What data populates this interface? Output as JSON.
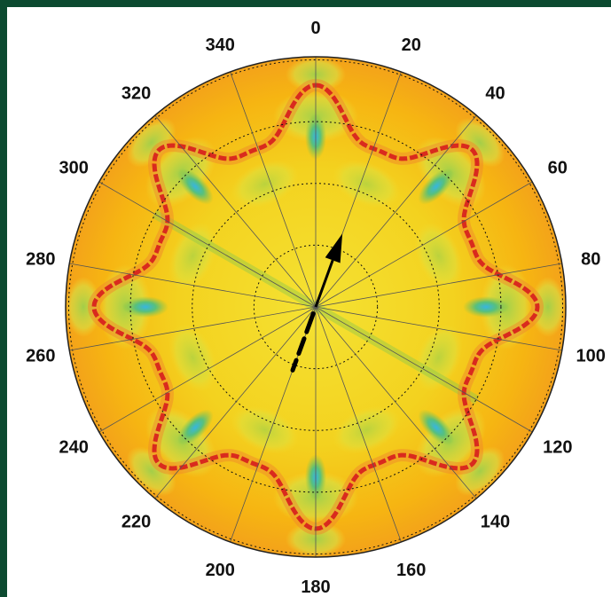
{
  "colors": {
    "frame": "#0c4a30",
    "field_base": "#f5b400",
    "field_mid": "#f1e230",
    "field_low": "#7fc24a",
    "field_min": "#3fb8d8",
    "field_peak": "#d92a1e",
    "grid": "#555555",
    "arrow": "#000000"
  },
  "chart_data": {
    "type": "polar-contour",
    "title": "",
    "angular_axis": {
      "direction": "clockwise",
      "zero_at": "top",
      "ticks": [
        "0",
        "20",
        "40",
        "60",
        "80",
        "100",
        "120",
        "140",
        "160",
        "180",
        "200",
        "220",
        "240",
        "260",
        "280",
        "300",
        "320",
        "340"
      ],
      "tick_values_deg": [
        0,
        20,
        40,
        60,
        80,
        100,
        120,
        140,
        160,
        180,
        200,
        220,
        240,
        260,
        280,
        300,
        320,
        340
      ],
      "spoke_step_deg": 20
    },
    "radial_axis": {
      "rings_dotted": 4,
      "tick_labels_shown": false
    },
    "field_pattern": {
      "symmetry": "8-fold",
      "peak_lobes_deg": [
        22.5,
        67.5,
        112.5,
        157.5,
        202.5,
        247.5,
        292.5,
        337.5
      ],
      "minimum_patches_deg": [
        0,
        45,
        90,
        135,
        180,
        225,
        270,
        315
      ]
    },
    "arrow": {
      "direction_deg": 20,
      "description_visible": false
    },
    "grid": true,
    "legend": "none"
  }
}
